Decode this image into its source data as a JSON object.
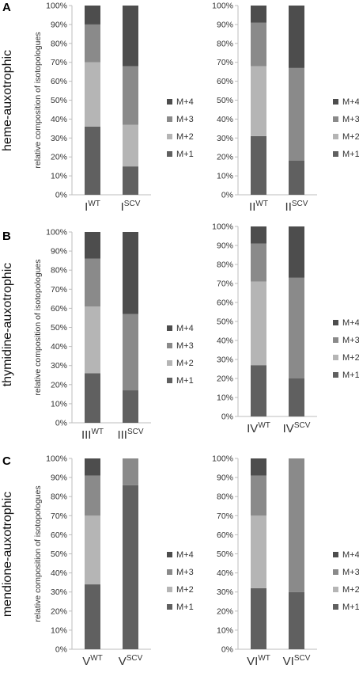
{
  "series_names": [
    "M+1",
    "M+2",
    "M+3",
    "M+4"
  ],
  "colors": {
    "M+1": "#606060",
    "M+2": "#b5b5b5",
    "M+3": "#8a8a8a",
    "M+4": "#4d4d4d",
    "axis": "#bdbdbd",
    "text": "#333333"
  },
  "ylabel": "relative composition of isotopologues",
  "chart_data": [
    {
      "type": "bar",
      "stacked": true,
      "panel_letter": "A",
      "row_label": "heme-auxotrophic",
      "categories": [
        {
          "base": "I",
          "sup": "WT"
        },
        {
          "base": "I",
          "sup": "SCV"
        }
      ],
      "series": [
        {
          "name": "M+1",
          "values": [
            36,
            15
          ]
        },
        {
          "name": "M+2",
          "values": [
            34,
            22
          ]
        },
        {
          "name": "M+3",
          "values": [
            20,
            31
          ]
        },
        {
          "name": "M+4",
          "values": [
            10,
            32
          ]
        }
      ],
      "ylim": [
        0,
        100
      ],
      "yticks": [
        "0%",
        "10%",
        "20%",
        "30%",
        "40%",
        "50%",
        "60%",
        "70%",
        "80%",
        "90%",
        "100%"
      ],
      "ylabel": "relative composition of isotopologues",
      "legend": "right"
    },
    {
      "type": "bar",
      "stacked": true,
      "panel_letter": "",
      "row_label": "",
      "categories": [
        {
          "base": "II",
          "sup": "WT"
        },
        {
          "base": "II",
          "sup": "SCV"
        }
      ],
      "series": [
        {
          "name": "M+1",
          "values": [
            31,
            18
          ]
        },
        {
          "name": "M+2",
          "values": [
            37,
            0
          ]
        },
        {
          "name": "M+3",
          "values": [
            23,
            49
          ]
        },
        {
          "name": "M+4",
          "values": [
            9,
            33
          ]
        }
      ],
      "ylim": [
        0,
        100
      ],
      "yticks": [
        "0%",
        "10%",
        "20%",
        "30%",
        "40%",
        "50%",
        "60%",
        "70%",
        "80%",
        "90%",
        "100%"
      ],
      "ylabel": "",
      "legend": "right"
    },
    {
      "type": "bar",
      "stacked": true,
      "panel_letter": "B",
      "row_label": "thymidine-auxotrophic",
      "categories": [
        {
          "base": "III",
          "sup": "WT"
        },
        {
          "base": "III",
          "sup": "SCV"
        }
      ],
      "series": [
        {
          "name": "M+1",
          "values": [
            26,
            17
          ]
        },
        {
          "name": "M+2",
          "values": [
            35,
            0
          ]
        },
        {
          "name": "M+3",
          "values": [
            25,
            40
          ]
        },
        {
          "name": "M+4",
          "values": [
            14,
            43
          ]
        }
      ],
      "ylim": [
        0,
        100
      ],
      "yticks": [
        "0%",
        "10%",
        "20%",
        "30%",
        "40%",
        "50%",
        "60%",
        "70%",
        "80%",
        "90%",
        "100%"
      ],
      "ylabel": "relative composition of isotopologues",
      "legend": "right"
    },
    {
      "type": "bar",
      "stacked": true,
      "panel_letter": "",
      "row_label": "",
      "categories": [
        {
          "base": "IV",
          "sup": "WT"
        },
        {
          "base": "IV",
          "sup": "SCV"
        }
      ],
      "series": [
        {
          "name": "M+1",
          "values": [
            27,
            20
          ]
        },
        {
          "name": "M+2",
          "values": [
            44,
            0
          ]
        },
        {
          "name": "M+3",
          "values": [
            20,
            53
          ]
        },
        {
          "name": "M+4",
          "values": [
            9,
            27
          ]
        }
      ],
      "ylim": [
        0,
        100
      ],
      "yticks": [
        "0%",
        "10%",
        "20%",
        "30%",
        "40%",
        "50%",
        "60%",
        "70%",
        "80%",
        "90%",
        "100%"
      ],
      "ylabel": "",
      "legend": "right"
    },
    {
      "type": "bar",
      "stacked": true,
      "panel_letter": "C",
      "row_label": "mendione-auxotrophic",
      "categories": [
        {
          "base": "V",
          "sup": "WT"
        },
        {
          "base": "V",
          "sup": "SCV"
        }
      ],
      "series": [
        {
          "name": "M+1",
          "values": [
            34,
            86
          ]
        },
        {
          "name": "M+2",
          "values": [
            36,
            0
          ]
        },
        {
          "name": "M+3",
          "values": [
            21,
            14
          ]
        },
        {
          "name": "M+4",
          "values": [
            9,
            0
          ]
        }
      ],
      "ylim": [
        0,
        100
      ],
      "yticks": [
        "0%",
        "10%",
        "20%",
        "30%",
        "40%",
        "50%",
        "60%",
        "70%",
        "80%",
        "90%",
        "100%"
      ],
      "ylabel": "relative composition of isotopologues",
      "legend": "right"
    },
    {
      "type": "bar",
      "stacked": true,
      "panel_letter": "",
      "row_label": "",
      "categories": [
        {
          "base": "VI",
          "sup": "WT"
        },
        {
          "base": "VI",
          "sup": "SCV"
        }
      ],
      "series": [
        {
          "name": "M+1",
          "values": [
            32,
            30
          ]
        },
        {
          "name": "M+2",
          "values": [
            38,
            0
          ]
        },
        {
          "name": "M+3",
          "values": [
            21,
            70
          ]
        },
        {
          "name": "M+4",
          "values": [
            9,
            0
          ]
        }
      ],
      "ylim": [
        0,
        100
      ],
      "yticks": [
        "0%",
        "10%",
        "20%",
        "30%",
        "40%",
        "50%",
        "60%",
        "70%",
        "80%",
        "90%",
        "100%"
      ],
      "ylabel": "",
      "legend": "right"
    }
  ]
}
